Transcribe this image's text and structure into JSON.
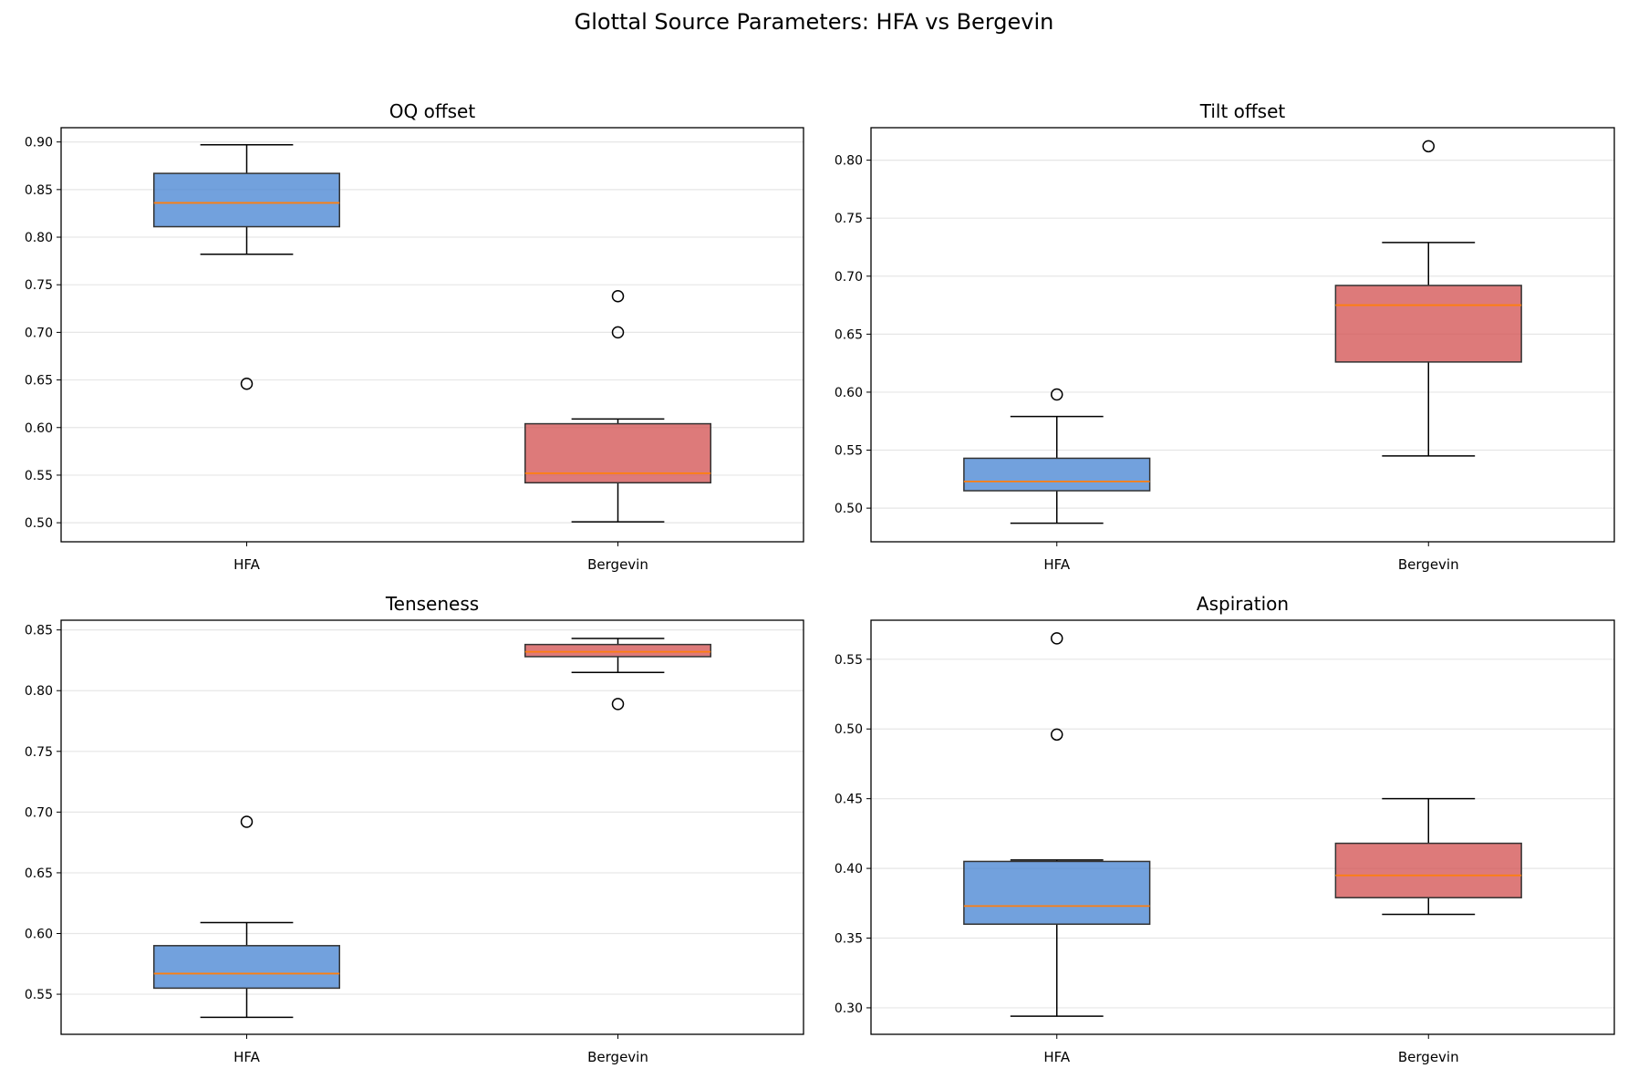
{
  "figure": {
    "title": "Glottal Source Parameters: HFA vs Bergevin"
  },
  "colors": {
    "hfa_fill": "#4a86d4",
    "bergevin_fill": "#d45454",
    "median": "#ff7f0e",
    "grid": "#e6e6e6",
    "box_edge": "#333333"
  },
  "chart_data": [
    {
      "type": "box",
      "title": "OQ offset",
      "categories": [
        "HFA",
        "Bergevin"
      ],
      "ylim": [
        0.48,
        0.915
      ],
      "yticks": [
        "0.50",
        "0.55",
        "0.60",
        "0.65",
        "0.70",
        "0.75",
        "0.80",
        "0.85",
        "0.90"
      ],
      "grid": "y",
      "boxes": [
        {
          "name": "HFA",
          "whisker_low": 0.782,
          "q1": 0.811,
          "median": 0.836,
          "q3": 0.867,
          "whisker_high": 0.897,
          "outliers": [
            0.646
          ]
        },
        {
          "name": "Bergevin",
          "whisker_low": 0.501,
          "q1": 0.542,
          "median": 0.552,
          "q3": 0.604,
          "whisker_high": 0.609,
          "outliers": [
            0.7,
            0.738
          ]
        }
      ]
    },
    {
      "type": "box",
      "title": "Tilt offset",
      "categories": [
        "HFA",
        "Bergevin"
      ],
      "ylim": [
        0.471,
        0.828
      ],
      "yticks": [
        "0.50",
        "0.55",
        "0.60",
        "0.65",
        "0.70",
        "0.75",
        "0.80"
      ],
      "grid": "y",
      "boxes": [
        {
          "name": "HFA",
          "whisker_low": 0.487,
          "q1": 0.515,
          "median": 0.523,
          "q3": 0.543,
          "whisker_high": 0.579,
          "outliers": [
            0.598
          ]
        },
        {
          "name": "Bergevin",
          "whisker_low": 0.545,
          "q1": 0.626,
          "median": 0.675,
          "q3": 0.692,
          "whisker_high": 0.729,
          "outliers": [
            0.812
          ]
        }
      ]
    },
    {
      "type": "box",
      "title": "Tenseness",
      "categories": [
        "HFA",
        "Bergevin"
      ],
      "ylim": [
        0.517,
        0.858
      ],
      "yticks": [
        "0.55",
        "0.60",
        "0.65",
        "0.70",
        "0.75",
        "0.80",
        "0.85"
      ],
      "grid": "y",
      "boxes": [
        {
          "name": "HFA",
          "whisker_low": 0.531,
          "q1": 0.555,
          "median": 0.567,
          "q3": 0.59,
          "whisker_high": 0.609,
          "outliers": [
            0.692
          ]
        },
        {
          "name": "Bergevin",
          "whisker_low": 0.815,
          "q1": 0.828,
          "median": 0.832,
          "q3": 0.838,
          "whisker_high": 0.843,
          "outliers": [
            0.789
          ]
        }
      ]
    },
    {
      "type": "box",
      "title": "Aspiration",
      "categories": [
        "HFA",
        "Bergevin"
      ],
      "ylim": [
        0.281,
        0.578
      ],
      "yticks": [
        "0.30",
        "0.35",
        "0.40",
        "0.45",
        "0.50",
        "0.55"
      ],
      "grid": "y",
      "boxes": [
        {
          "name": "HFA",
          "whisker_low": 0.294,
          "q1": 0.36,
          "median": 0.373,
          "q3": 0.405,
          "whisker_high": 0.406,
          "outliers": [
            0.496,
            0.565
          ]
        },
        {
          "name": "Bergevin",
          "whisker_low": 0.367,
          "q1": 0.379,
          "median": 0.395,
          "q3": 0.418,
          "whisker_high": 0.45,
          "outliers": []
        }
      ]
    }
  ]
}
